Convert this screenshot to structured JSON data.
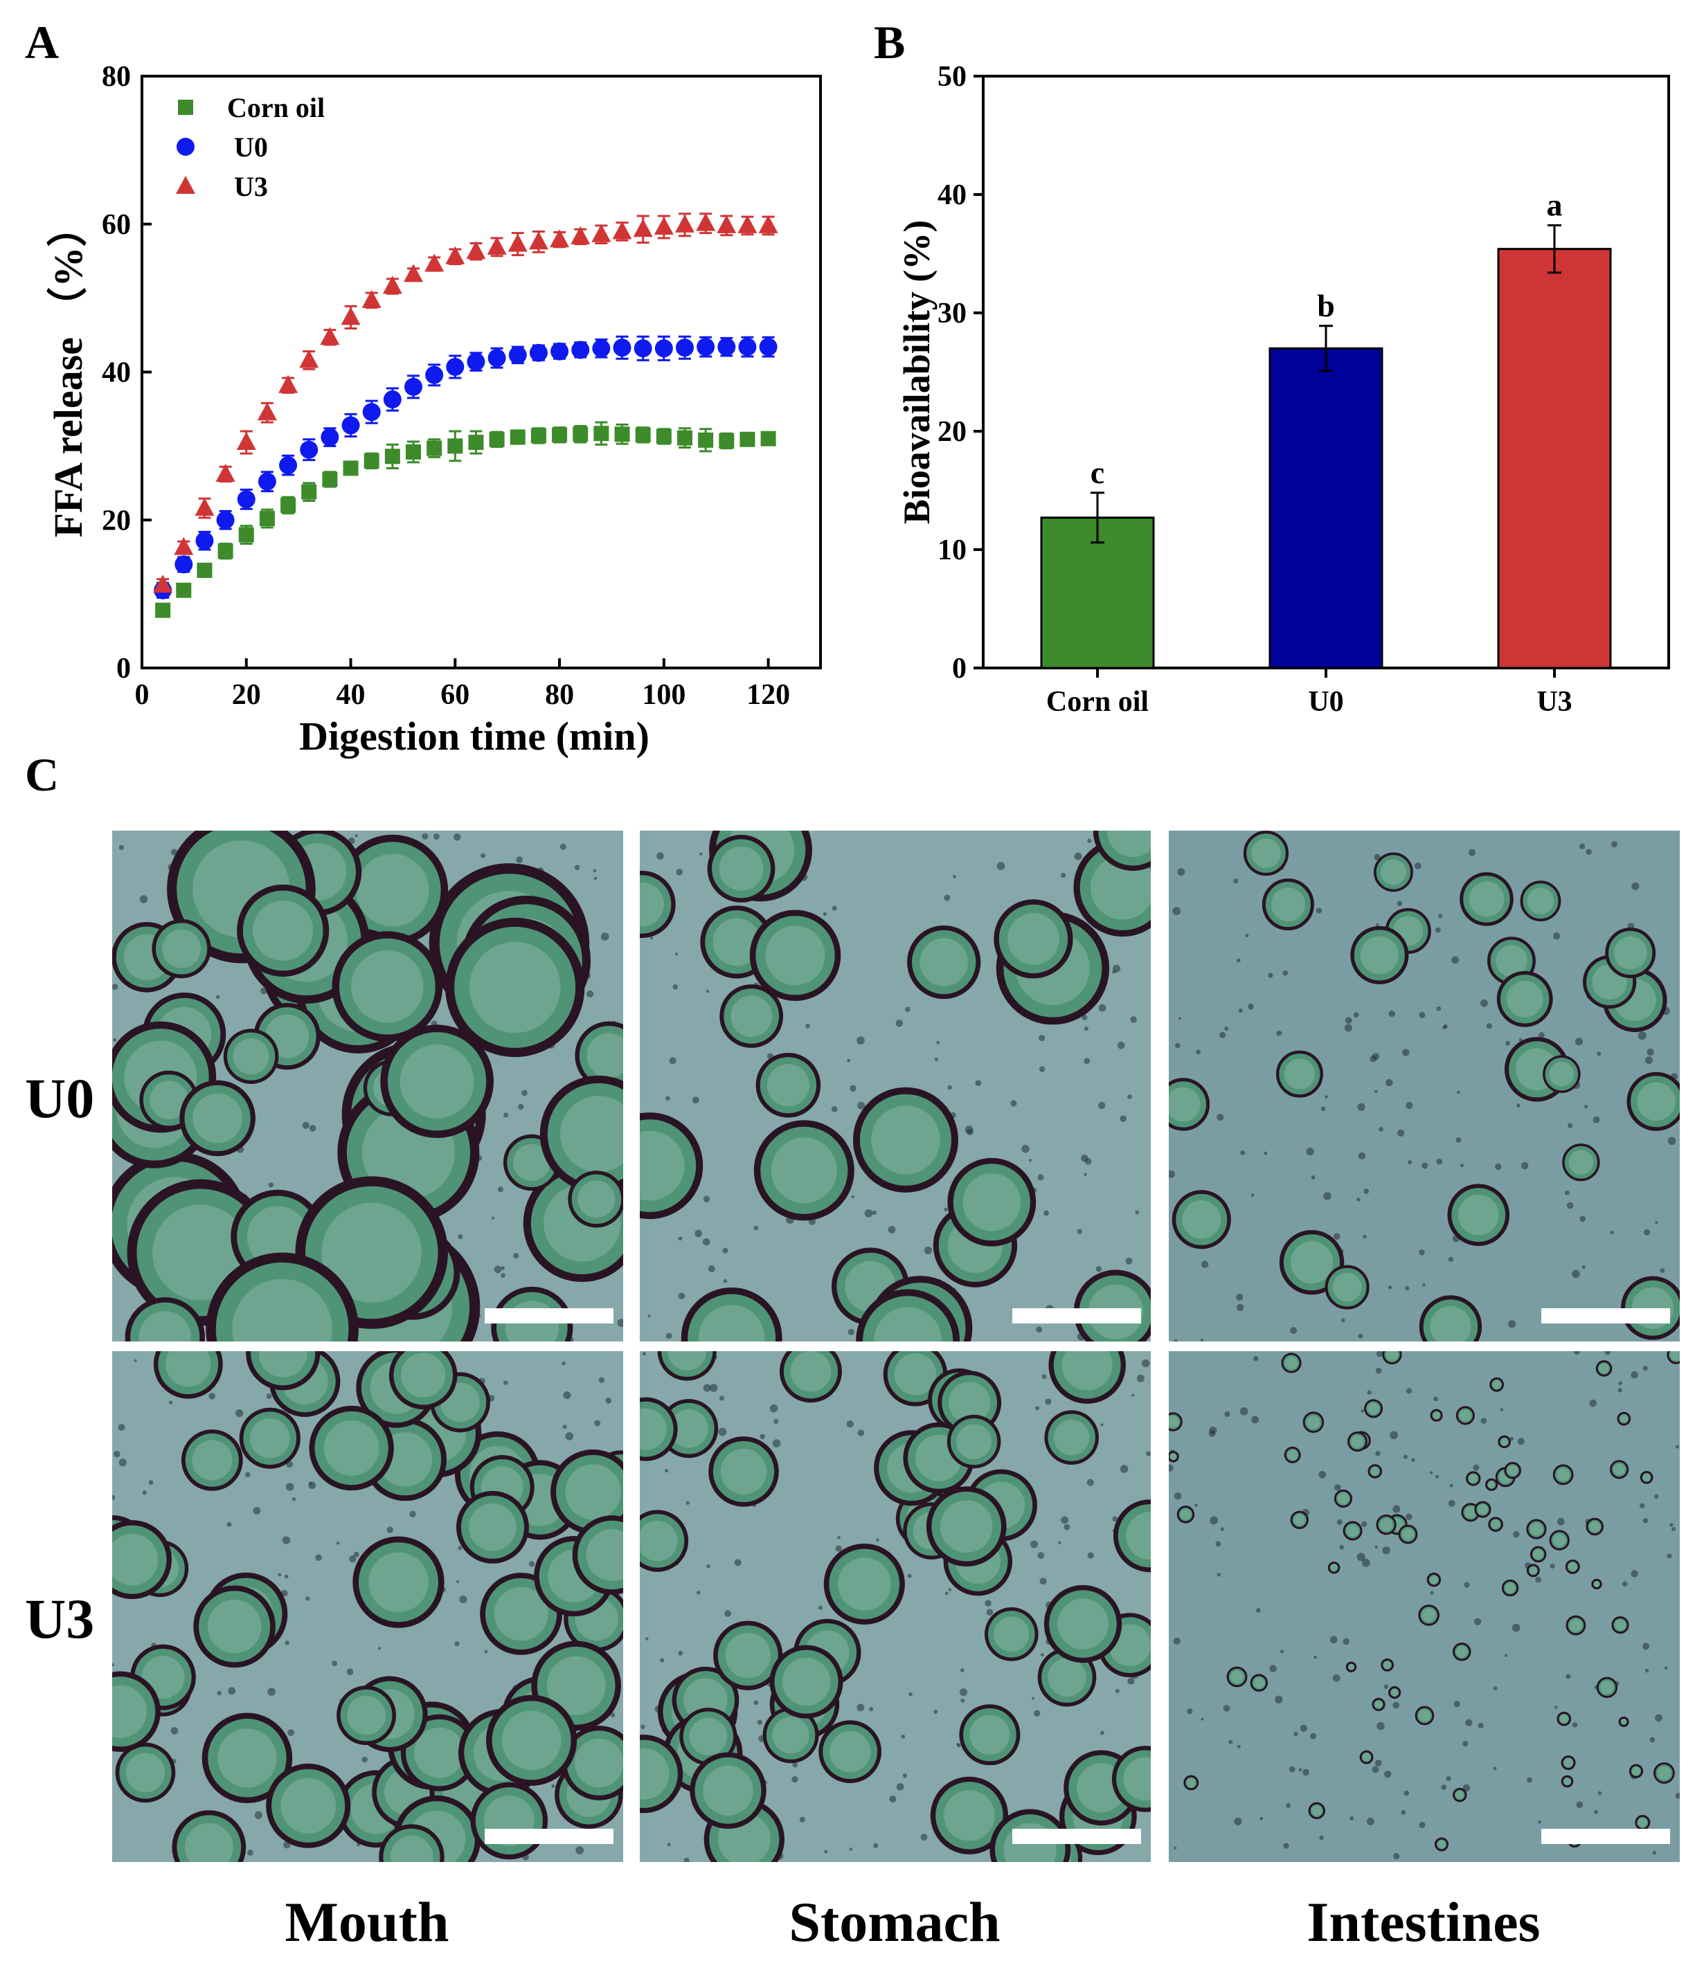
{
  "panels": {
    "a": "A",
    "b": "B",
    "c": "C"
  },
  "colors": {
    "corn_oil": "#3d8b2a",
    "u0": "#0f1aee",
    "u3": "#d03535",
    "u0_bar": "#00009a",
    "micro_bg": "#86a8aa",
    "micro_bg_dark": "#7a9da3",
    "droplet_ring": "#2a1424",
    "droplet_fill": "#4f9477"
  },
  "chart_data": [
    {
      "type": "scatter",
      "panel": "A",
      "xlabel": "Digestion time (min)",
      "ylabel": "FFA release （%）",
      "xlim": [
        0,
        130
      ],
      "ylim": [
        0,
        80
      ],
      "xticks": [
        0,
        20,
        40,
        60,
        80,
        100,
        120
      ],
      "yticks": [
        0,
        20,
        40,
        60,
        80
      ],
      "legend": "top-left",
      "x": [
        4,
        8,
        12,
        16,
        20,
        24,
        28,
        32,
        36,
        40,
        44,
        48,
        52,
        56,
        60,
        64,
        68,
        72,
        76,
        80,
        84,
        88,
        92,
        96,
        100,
        104,
        108,
        112,
        116,
        120
      ],
      "series": [
        {
          "name": "Corn oil",
          "marker": "square",
          "color": "#3d8b2a",
          "values": [
            7.8,
            10.5,
            13.2,
            15.8,
            18.0,
            20.2,
            22.0,
            23.8,
            25.5,
            27.0,
            28.0,
            28.6,
            29.2,
            29.7,
            30.0,
            30.5,
            30.9,
            31.2,
            31.4,
            31.5,
            31.6,
            31.7,
            31.6,
            31.5,
            31.3,
            31.1,
            30.8,
            30.7,
            30.9,
            31.0
          ],
          "errors": [
            0.6,
            0.6,
            0.8,
            1.0,
            1.2,
            1.2,
            1.1,
            1.2,
            1.0,
            0.8,
            1.0,
            1.6,
            1.4,
            1.2,
            2.0,
            1.5,
            1.0,
            0.9,
            1.0,
            1.0,
            1.1,
            1.5,
            1.3,
            1.0,
            1.0,
            1.3,
            1.5,
            1.0,
            0.8,
            0.8
          ]
        },
        {
          "name": "U0",
          "marker": "circle",
          "color": "#0f1aee",
          "values": [
            10.5,
            14.0,
            17.2,
            20.0,
            22.8,
            25.2,
            27.4,
            29.5,
            31.2,
            32.8,
            34.6,
            36.3,
            38.0,
            39.6,
            40.7,
            41.4,
            41.9,
            42.3,
            42.6,
            42.8,
            43.0,
            43.2,
            43.3,
            43.2,
            43.2,
            43.3,
            43.4,
            43.4,
            43.4,
            43.4
          ],
          "errors": [
            1.0,
            1.0,
            1.2,
            1.2,
            1.3,
            1.3,
            1.3,
            1.4,
            1.2,
            1.5,
            1.5,
            1.5,
            1.5,
            1.4,
            1.5,
            1.2,
            1.3,
            1.1,
            1.0,
            1.0,
            1.0,
            1.2,
            1.5,
            1.6,
            1.6,
            1.5,
            1.3,
            1.2,
            1.3,
            1.3
          ]
        },
        {
          "name": "U3",
          "marker": "triangle",
          "color": "#d03535",
          "values": [
            11.2,
            16.3,
            21.6,
            26.2,
            30.5,
            34.5,
            38.2,
            41.6,
            44.7,
            47.4,
            49.7,
            51.6,
            53.2,
            54.6,
            55.6,
            56.3,
            56.9,
            57.3,
            57.6,
            57.9,
            58.3,
            58.6,
            59.0,
            59.3,
            59.6,
            59.9,
            60.1,
            59.8,
            59.8,
            59.8
          ],
          "errors": [
            0.8,
            0.8,
            1.3,
            1.0,
            1.5,
            1.3,
            1.0,
            1.2,
            1.0,
            1.5,
            1.0,
            1.0,
            0.8,
            0.9,
            1.0,
            1.1,
            1.2,
            1.5,
            1.4,
            1.0,
            1.0,
            1.2,
            1.2,
            1.8,
            1.5,
            1.5,
            1.3,
            1.3,
            1.2,
            1.2
          ]
        }
      ]
    },
    {
      "type": "bar",
      "panel": "B",
      "ylabel": "Bioavailability (%)",
      "ylim": [
        0,
        50
      ],
      "yticks": [
        0,
        10,
        20,
        30,
        40,
        50
      ],
      "categories": [
        "Corn oil",
        "U0",
        "U3"
      ],
      "values": [
        12.7,
        27.0,
        35.4
      ],
      "errors": [
        2.1,
        1.9,
        2.0
      ],
      "significance": [
        "c",
        "b",
        "a"
      ],
      "bar_colors": [
        "#3d8b2a",
        "#00009a",
        "#d03535"
      ]
    }
  ],
  "micrographs": {
    "rows": [
      "U0",
      "U3"
    ],
    "columns": [
      "Mouth",
      "Stomach",
      "Intestines"
    ]
  }
}
